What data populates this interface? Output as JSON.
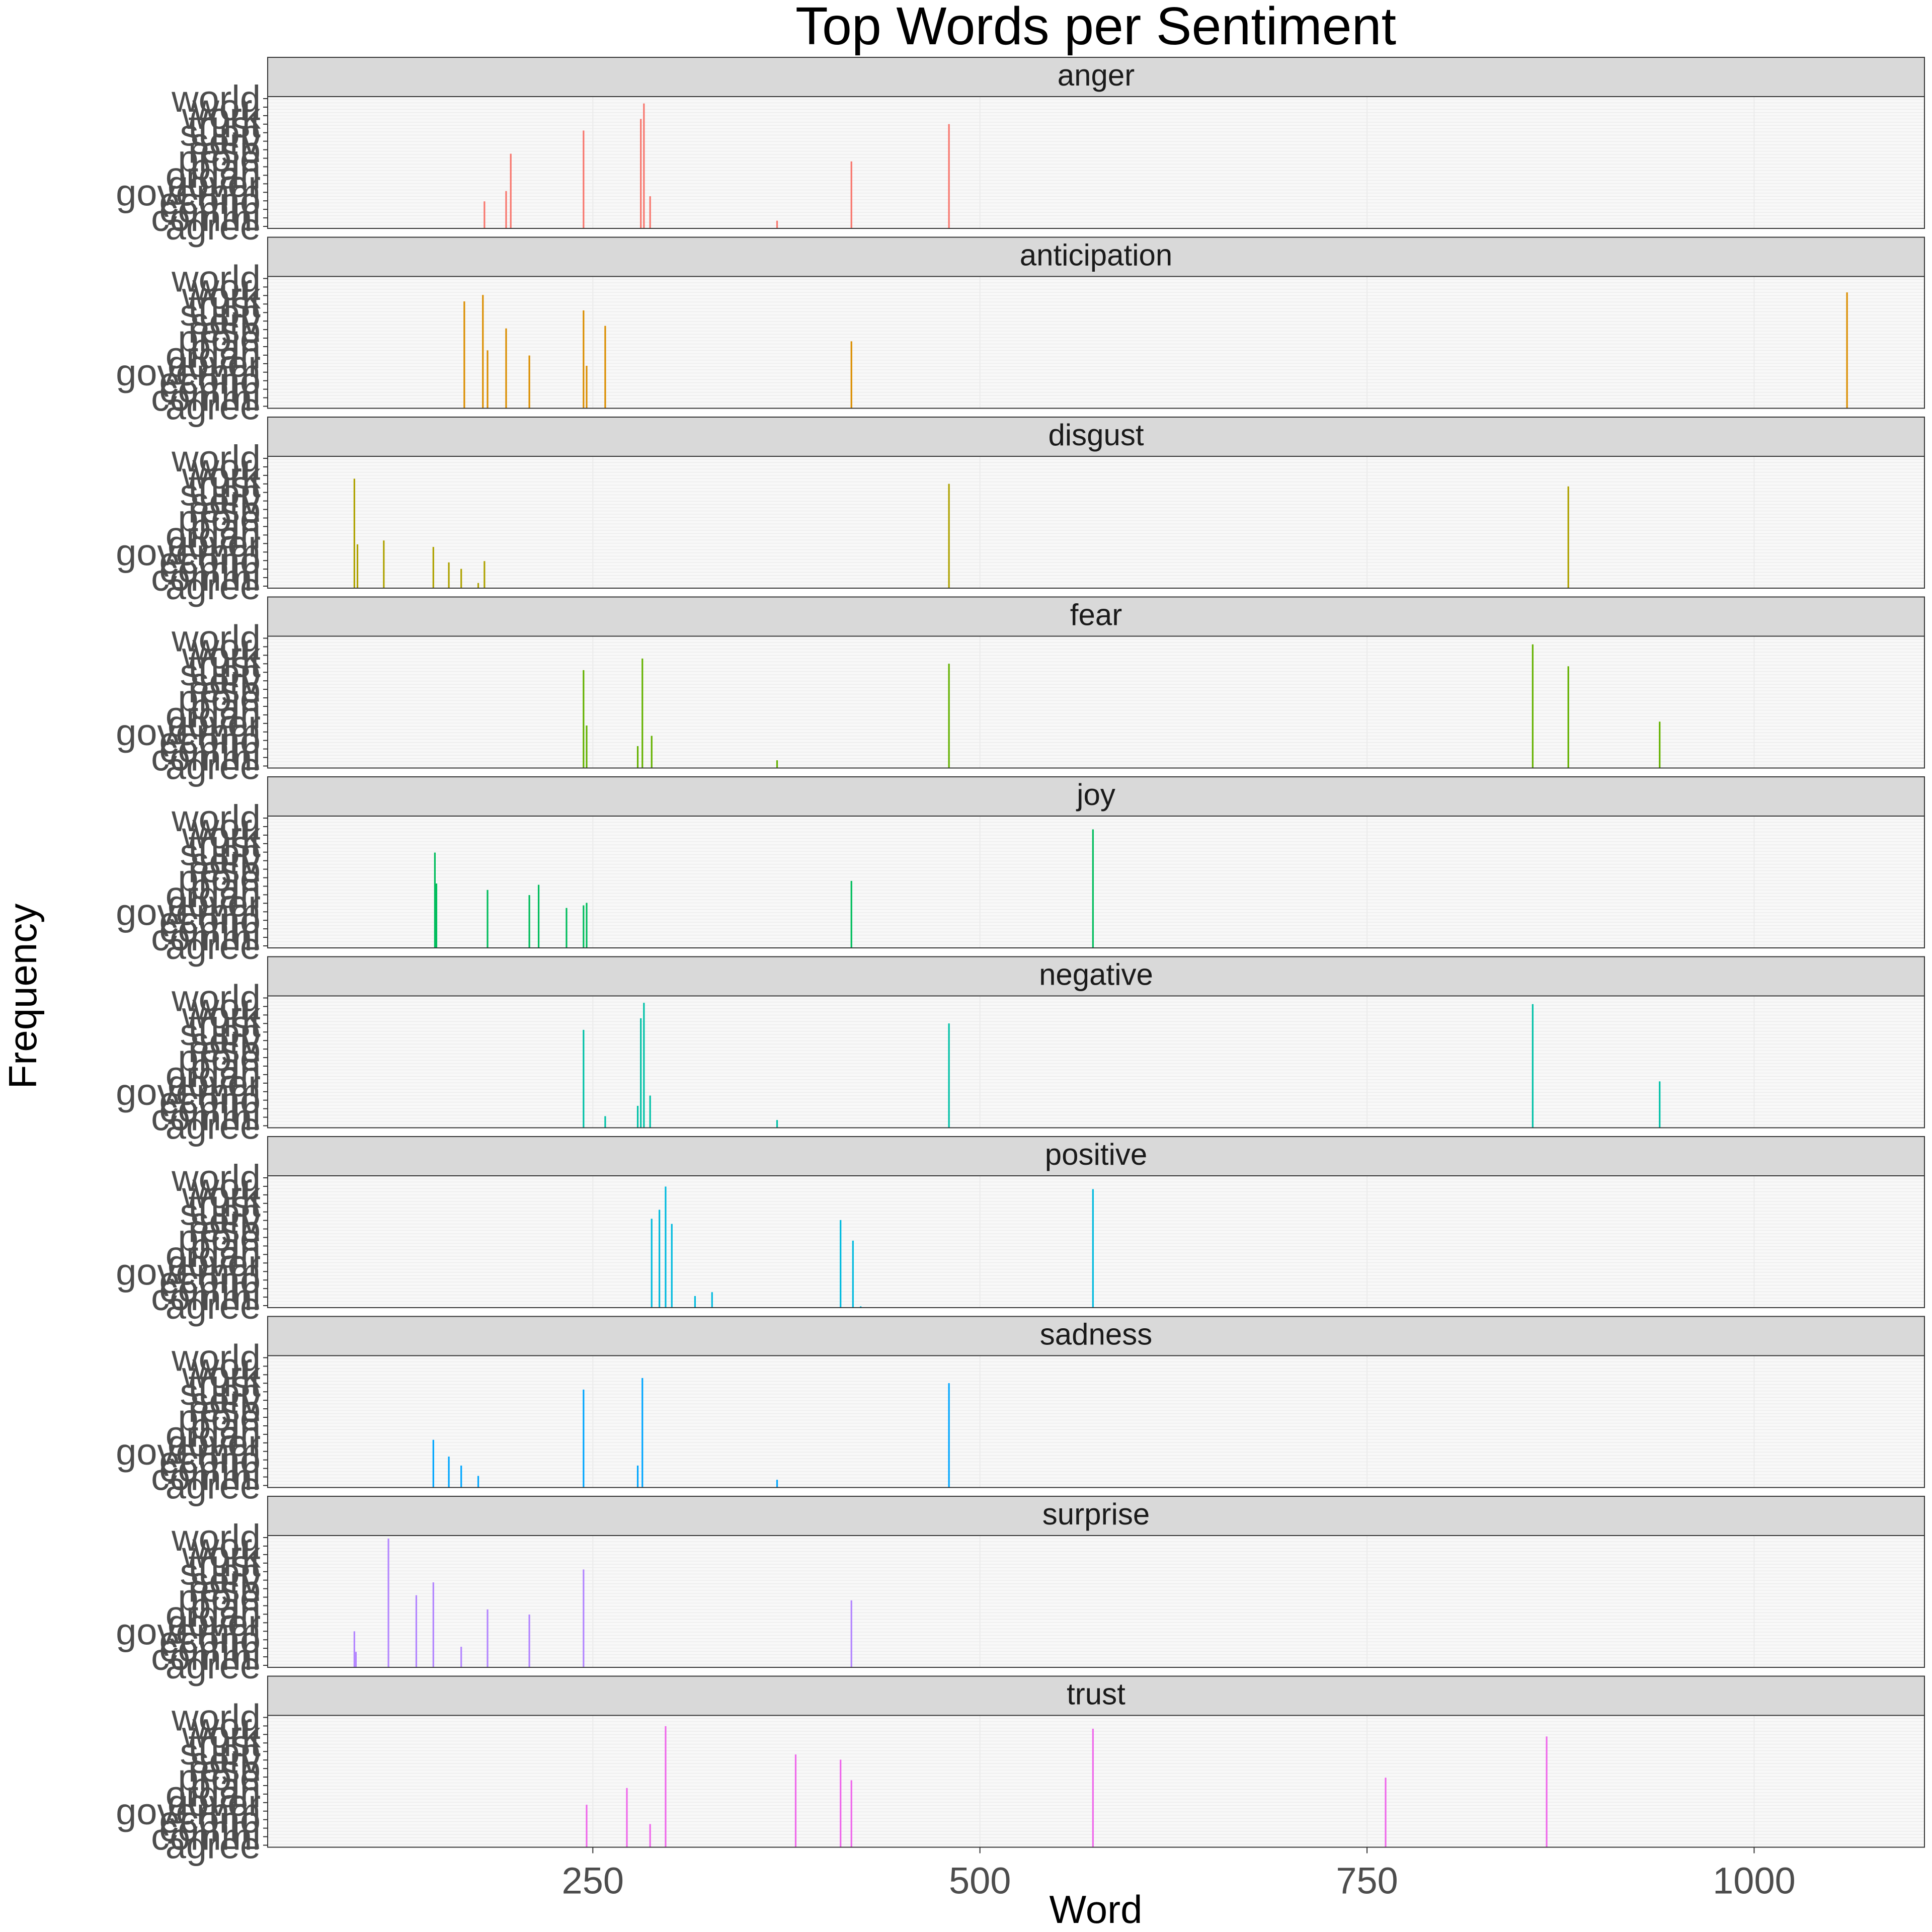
{
  "chart_data": {
    "type": "bar",
    "title": "Top Words per Sentiment",
    "xlabel": "Word",
    "ylabel": "Frequency",
    "xlim": [
      40,
      1110
    ],
    "x_ticks": [
      250,
      500,
      750,
      1000
    ],
    "x_tick_labels": [
      "250",
      "500",
      "750",
      "1000"
    ],
    "y_tick_labels": [
      "agree",
      "commi",
      "comm",
      "econo",
      "governm",
      "gover",
      "organ",
      "plan",
      "proje",
      "resp",
      "serv",
      "supp",
      "trust",
      "work",
      "worl",
      "world"
    ],
    "grid": true,
    "legend": "none",
    "facets": [
      {
        "name": "anger",
        "color": "#F8766D",
        "x": [
          180,
          194,
          197,
          244,
          281,
          283,
          287,
          369,
          417,
          480
        ],
        "y": [
          21,
          29,
          58,
          76,
          85,
          97,
          25,
          6,
          52,
          81
        ]
      },
      {
        "name": "anticipation",
        "color": "#DB8E00",
        "x": [
          167,
          179,
          182,
          194,
          209,
          244,
          246,
          258,
          417,
          1060
        ],
        "y": [
          83,
          88,
          45,
          62,
          41,
          76,
          33,
          64,
          52,
          90
        ]
      },
      {
        "name": "disgust",
        "color": "#AEA200",
        "x": [
          96,
          98,
          115,
          147,
          157,
          165,
          176,
          180,
          480,
          880
        ],
        "y": [
          85,
          34,
          37,
          32,
          20,
          15,
          4,
          21,
          81,
          79
        ]
      },
      {
        "name": "fear",
        "color": "#64B200",
        "x": [
          244,
          246,
          279,
          282,
          288,
          369,
          480,
          857,
          880,
          939
        ],
        "y": [
          76,
          33,
          17,
          85,
          25,
          6,
          81,
          96,
          79,
          36
        ]
      },
      {
        "name": "joy",
        "color": "#00BD5C",
        "x": [
          148,
          149,
          182,
          209,
          215,
          233,
          244,
          246,
          417,
          573
        ],
        "y": [
          74,
          50,
          45,
          41,
          49,
          31,
          33,
          35,
          52,
          92
        ]
      },
      {
        "name": "negative",
        "color": "#00C1A7",
        "x": [
          244,
          258,
          279,
          281,
          283,
          287,
          369,
          480,
          857,
          939
        ],
        "y": [
          76,
          9,
          17,
          85,
          97,
          25,
          6,
          81,
          96,
          36
        ]
      },
      {
        "name": "positive",
        "color": "#00BADE",
        "x": [
          288,
          293,
          297,
          301,
          316,
          327,
          410,
          418,
          423,
          573
        ],
        "y": [
          69,
          76,
          94,
          65,
          9,
          12,
          68,
          52,
          1,
          92
        ]
      },
      {
        "name": "sadness",
        "color": "#00A6FF",
        "x": [
          147,
          157,
          165,
          176,
          244,
          279,
          282,
          369,
          480
        ],
        "y": [
          37,
          24,
          17,
          9,
          76,
          17,
          85,
          6,
          81
        ]
      },
      {
        "name": "surprise",
        "color": "#B385FF",
        "x": [
          96,
          97,
          118,
          136,
          147,
          165,
          182,
          209,
          244,
          417
        ],
        "y": [
          28,
          12,
          100,
          56,
          66,
          16,
          45,
          41,
          76,
          52
        ]
      },
      {
        "name": "trust",
        "color": "#EF67EB",
        "x": [
          246,
          272,
          287,
          297,
          381,
          410,
          417,
          573,
          762,
          866
        ],
        "y": [
          33,
          46,
          18,
          94,
          72,
          68,
          52,
          92,
          54,
          86
        ]
      }
    ]
  },
  "colors": {
    "panel_background": "#f8f8f8",
    "strip_background": "#d9d9d9",
    "grid": "#ebebeb"
  }
}
